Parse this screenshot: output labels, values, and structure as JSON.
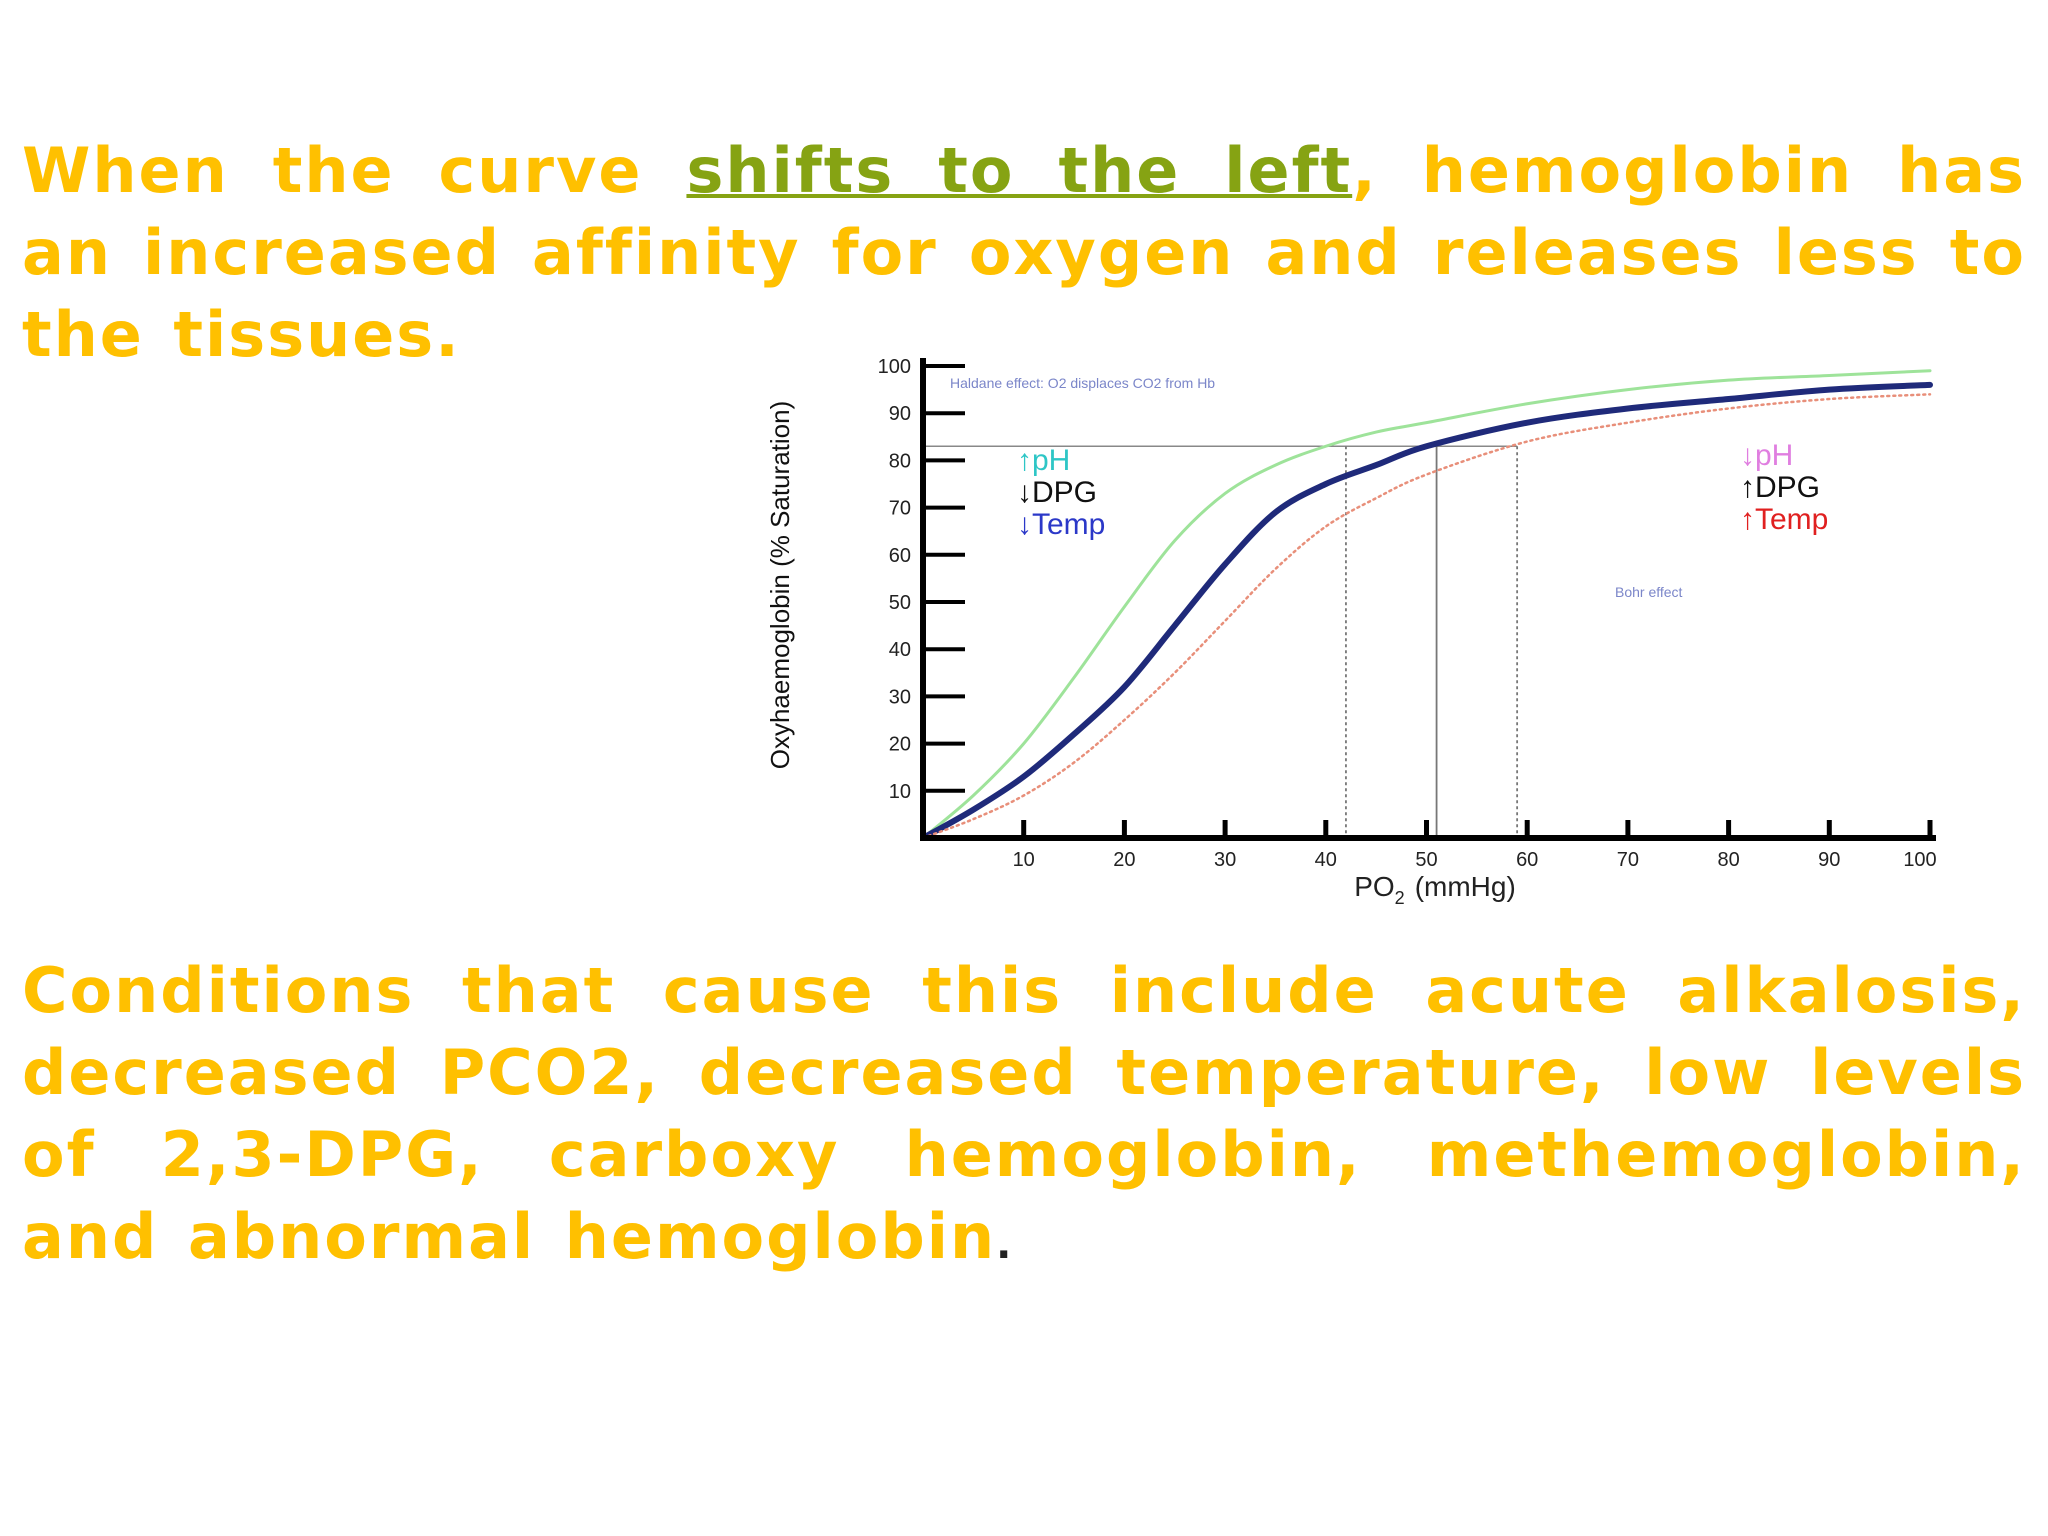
{
  "text": {
    "p1_before": "When the curve ",
    "p1_highlight": "shifts to the left",
    "p1_after": ", hemoglobin has an increased affinity for oxygen and releases less to the tissues.",
    "p2_main": "Conditions that cause this include acute alkalosis, decreased PCO2, decreased temperature, low levels of 2,3-DPG, carboxy hemoglobin, methemoglobin, and abnormal hemoglobin",
    "p2_end": "."
  },
  "colors": {
    "text": "#ffc000",
    "highlight": "#86a313",
    "left_curve": "#9ee39a",
    "normal_curve": "#1f2a7a",
    "right_curve": "#e88f7a",
    "ph_up": "#2ec6c6",
    "ph_down": "#e07ee0",
    "temp_down": "#2b38c8",
    "temp_up": "#e02020"
  },
  "chart_data": {
    "type": "line",
    "xlabel": "PO",
    "xlabel_sub": "2",
    "xlabel_unit": "(mmHg)",
    "ylabel": "Oxyhaemoglobin (% Saturation)",
    "xlim": [
      0,
      100
    ],
    "ylim": [
      0,
      100
    ],
    "xticks": [
      10,
      20,
      30,
      40,
      50,
      60,
      70,
      80,
      90,
      100
    ],
    "yticks": [
      10,
      20,
      30,
      40,
      50,
      60,
      70,
      80,
      90,
      100
    ],
    "series": [
      {
        "key": "left",
        "x": [
          0,
          5,
          10,
          15,
          20,
          25,
          30,
          35,
          40,
          45,
          50,
          60,
          70,
          80,
          90,
          100
        ],
        "values": [
          0,
          9,
          20,
          34,
          49,
          63,
          73,
          79,
          83,
          86,
          88,
          92,
          95,
          97,
          98,
          99
        ]
      },
      {
        "key": "normal",
        "x": [
          0,
          5,
          10,
          15,
          20,
          25,
          30,
          35,
          40,
          45,
          50,
          60,
          70,
          80,
          90,
          100
        ],
        "values": [
          0,
          6,
          13,
          22,
          32,
          45,
          58,
          69,
          75,
          79,
          83,
          88,
          91,
          93,
          95,
          96
        ]
      },
      {
        "key": "right",
        "x": [
          0,
          5,
          10,
          15,
          20,
          25,
          30,
          35,
          40,
          45,
          50,
          60,
          70,
          80,
          90,
          100
        ],
        "values": [
          0,
          4,
          9,
          16,
          25,
          35,
          46,
          57,
          66,
          72,
          77,
          84,
          88,
          91,
          93,
          94
        ]
      }
    ],
    "reference_lines": {
      "y": 83,
      "x": [
        42,
        51,
        59
      ]
    },
    "annotations": {
      "top": "Haldane effect: O2 displaces CO2 from Hb",
      "right": "Bohr effect",
      "left_box": [
        {
          "arrow": "↑",
          "text": "pH"
        },
        {
          "arrow": "↓",
          "text": "DPG"
        },
        {
          "arrow": "↓",
          "text": "Temp"
        }
      ],
      "right_box": [
        {
          "arrow": "↓",
          "text": "pH"
        },
        {
          "arrow": "↑",
          "text": "DPG"
        },
        {
          "arrow": "↑",
          "text": "Temp"
        }
      ]
    }
  }
}
